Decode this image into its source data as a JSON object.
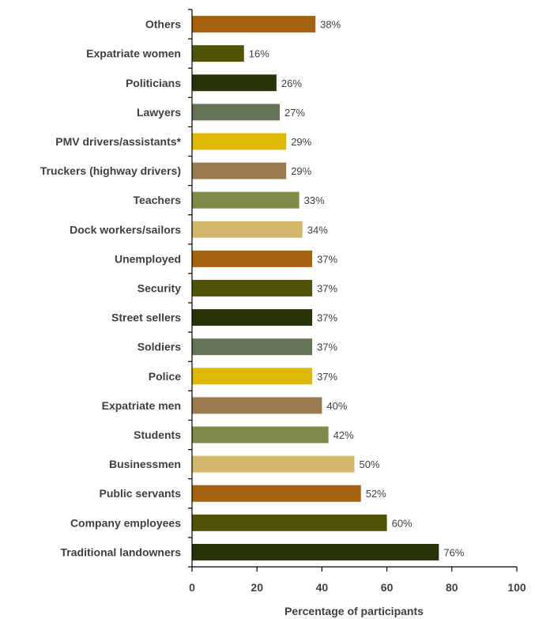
{
  "chart_data": {
    "type": "bar",
    "orientation": "horizontal",
    "categories": [
      "Others",
      "Expatriate women",
      "Politicians",
      "Lawyers",
      "PMV drivers/assistants*",
      "Truckers (highway drivers)",
      "Teachers",
      "Dock workers/sailors",
      "Unemployed",
      "Security",
      "Street sellers",
      "Soldiers",
      "Police",
      "Expatriate men",
      "Students",
      "Businessmen",
      "Public servants",
      "Company employees",
      "Traditional landowners"
    ],
    "values": [
      38,
      16,
      26,
      27,
      29,
      29,
      33,
      34,
      37,
      37,
      37,
      37,
      37,
      40,
      42,
      50,
      52,
      60,
      76
    ],
    "value_labels": [
      "38%",
      "16%",
      "26%",
      "27%",
      "29%",
      "29%",
      "33%",
      "34%",
      "37%",
      "37%",
      "37%",
      "37%",
      "37%",
      "40%",
      "42%",
      "50%",
      "52%",
      "60%",
      "76%"
    ],
    "bar_colors": [
      "#a5620f",
      "#4f5406",
      "#273309",
      "#637554",
      "#dbb904",
      "#9a7b4f",
      "#7f8948",
      "#d3b86c",
      "#a5620f",
      "#4f5406",
      "#273309",
      "#637554",
      "#dbb904",
      "#9a7b4f",
      "#7f8948",
      "#d3b86c",
      "#a5620f",
      "#4f5406",
      "#273309"
    ],
    "xlabel": "Percentage of participants",
    "xlim": [
      0,
      100
    ],
    "xticks": [
      0,
      20,
      40,
      60,
      80,
      100
    ],
    "xtick_labels": [
      "0",
      "20",
      "40",
      "60",
      "80",
      "100"
    ],
    "grid": false,
    "legend": "none"
  }
}
